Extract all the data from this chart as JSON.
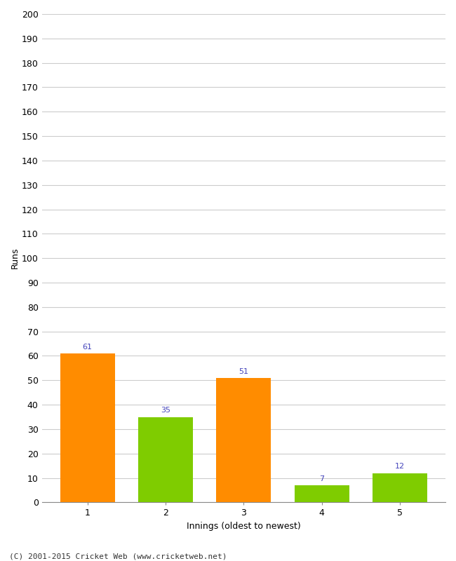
{
  "categories": [
    "1",
    "2",
    "3",
    "4",
    "5"
  ],
  "values": [
    61,
    35,
    51,
    7,
    12
  ],
  "bar_colors": [
    "#FF8C00",
    "#7FCC00",
    "#FF8C00",
    "#7FCC00",
    "#7FCC00"
  ],
  "xlabel": "Innings (oldest to newest)",
  "ylabel": "Runs",
  "ylim": [
    0,
    200
  ],
  "yticks": [
    0,
    10,
    20,
    30,
    40,
    50,
    60,
    70,
    80,
    90,
    100,
    110,
    120,
    130,
    140,
    150,
    160,
    170,
    180,
    190,
    200
  ],
  "annotation_color": "#4444BB",
  "annotation_fontsize": 8,
  "background_color": "#FFFFFF",
  "grid_color": "#CCCCCC",
  "footer": "(C) 2001-2015 Cricket Web (www.cricketweb.net)"
}
